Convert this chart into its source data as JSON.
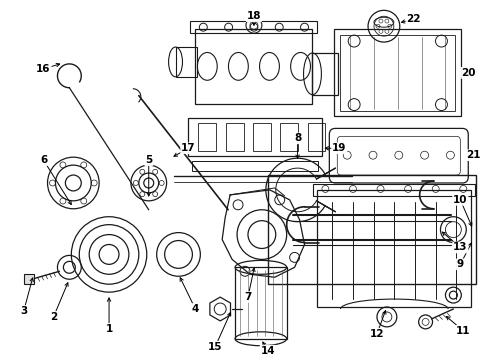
{
  "bg": "#ffffff",
  "lc": "#1a1a1a",
  "fig_w": 4.89,
  "fig_h": 3.6,
  "dpi": 100
}
